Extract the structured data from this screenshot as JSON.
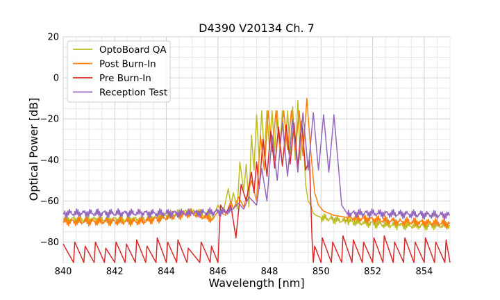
{
  "chart_data": {
    "type": "line",
    "title": "D4390 V20134 Ch. 7",
    "xlabel": "Wavelength [nm]",
    "ylabel": "Optical Power [dB]",
    "xlim": [
      840,
      855
    ],
    "ylim": [
      -90,
      20
    ],
    "x_ticks": [
      "840",
      "842",
      "844",
      "846",
      "848",
      "850",
      "852",
      "854"
    ],
    "y_ticks": [
      "20",
      "0",
      "−20",
      "−40",
      "−60",
      "−80"
    ],
    "grid": true,
    "legend_position": "top-left",
    "series": [
      {
        "name": "OptoBoard QA",
        "color": "#bcbd22",
        "x": [
          840,
          843,
          845,
          845.8,
          846,
          846.2,
          846.4,
          846.5,
          846.6,
          846.75,
          846.85,
          847.0,
          847.1,
          847.2,
          847.3,
          847.4,
          847.5,
          847.6,
          847.7,
          847.8,
          847.9,
          848.0,
          848.1,
          848.2,
          848.3,
          848.4,
          848.5,
          848.6,
          848.7,
          848.8,
          848.9,
          849.0,
          849.1,
          849.2,
          849.3,
          849.4,
          849.5,
          849.6,
          849.7,
          849.8,
          850.0,
          851,
          853,
          855
        ],
        "y": [
          -69,
          -69,
          -65,
          -68,
          -62,
          -66,
          -54,
          -62,
          -56,
          -64,
          -41,
          -55,
          -42,
          -63,
          -28,
          -45,
          -18,
          -40,
          -16,
          -38,
          -16,
          -35,
          -16,
          -36,
          -16,
          -36,
          -16,
          -37,
          -16,
          -37,
          -14,
          -40,
          -11,
          -40,
          -25,
          -52,
          -60,
          -62,
          -66,
          -67,
          -68,
          -70,
          -72,
          -72
        ]
      },
      {
        "name": "Post Burn-In",
        "color": "#ff7f0e",
        "x": [
          840,
          843,
          845,
          845.8,
          846,
          846.3,
          846.5,
          846.6,
          846.8,
          847.0,
          847.3,
          847.5,
          847.65,
          847.8,
          847.95,
          848.1,
          848.25,
          848.4,
          848.55,
          848.7,
          848.85,
          849.0,
          849.15,
          849.3,
          849.45,
          849.6,
          849.75,
          849.9,
          850.1,
          850.5,
          851,
          853,
          855
        ],
        "y": [
          -70,
          -70,
          -66,
          -69,
          -65,
          -67,
          -60,
          -64,
          -58,
          -63,
          -50,
          -60,
          -28,
          -45,
          -16,
          -36,
          -16,
          -34,
          -16,
          -35,
          -16,
          -36,
          -16,
          -38,
          -10,
          -36,
          -56,
          -62,
          -65,
          -67,
          -68,
          -70,
          -71
        ]
      },
      {
        "name": "Pre Burn-In",
        "color": "#d62728",
        "x": [
          840,
          840.4,
          840.45,
          840.8,
          840.85,
          841.2,
          841.25,
          841.6,
          841.65,
          842.0,
          842.05,
          842.4,
          842.45,
          842.8,
          842.85,
          843.2,
          843.25,
          843.6,
          843.65,
          844.0,
          844.05,
          844.4,
          844.45,
          844.8,
          844.85,
          845.3,
          845.35,
          845.7,
          845.75,
          846.0,
          846.1,
          846.3,
          846.5,
          846.7,
          846.9,
          847.1,
          847.3,
          847.4,
          847.5,
          847.6,
          847.75,
          847.9,
          848.05,
          848.2,
          848.35,
          848.5,
          848.65,
          848.8,
          848.95,
          849.1,
          849.25,
          849.4,
          849.55,
          849.65,
          849.7,
          849.75,
          850.0,
          850.05,
          850.4,
          850.45,
          850.8,
          850.85,
          851.2,
          851.25,
          851.6,
          851.65,
          852.0,
          852.05,
          852.4,
          852.45,
          852.8,
          852.85,
          853.2,
          853.25,
          853.6,
          853.65,
          854.0,
          854.05,
          854.4,
          854.45,
          854.8,
          854.85,
          855.0
        ],
        "y": [
          -81,
          -90,
          -80,
          -90,
          -82,
          -90,
          -80,
          -90,
          -83,
          -90,
          -80,
          -90,
          -81,
          -90,
          -79,
          -90,
          -82,
          -90,
          -78,
          -90,
          -80,
          -90,
          -79,
          -90,
          -83,
          -90,
          -80,
          -90,
          -82,
          -90,
          -62,
          -66,
          -62,
          -78,
          -52,
          -60,
          -46,
          -56,
          -41,
          -54,
          -30,
          -48,
          -26,
          -44,
          -24,
          -43,
          -23,
          -42,
          -22,
          -43,
          -21,
          -45,
          -40,
          -78,
          -90,
          -82,
          -90,
          -78,
          -90,
          -80,
          -90,
          -77,
          -90,
          -79,
          -90,
          -80,
          -90,
          -78,
          -90,
          -77,
          -90,
          -80,
          -90,
          -78,
          -90,
          -80,
          -90,
          -78,
          -90,
          -80,
          -90,
          -79,
          -90
        ]
      },
      {
        "name": "Reception Test",
        "color": "#9467bd",
        "x": [
          840,
          843,
          845,
          846.5,
          846.8,
          847.0,
          847.2,
          847.5,
          847.7,
          847.9,
          848.1,
          848.3,
          848.5,
          848.7,
          848.9,
          849.1,
          849.3,
          849.5,
          849.7,
          849.9,
          850.1,
          850.3,
          850.5,
          850.65,
          850.8,
          851.0,
          852,
          855
        ],
        "y": [
          -66,
          -66,
          -66,
          -65,
          -61,
          -64,
          -58,
          -62,
          -44,
          -60,
          -28,
          -50,
          -22,
          -48,
          -20,
          -46,
          -17,
          -45,
          -17,
          -45,
          -18,
          -46,
          -18,
          -40,
          -62,
          -66,
          -66,
          -67
        ]
      }
    ]
  }
}
